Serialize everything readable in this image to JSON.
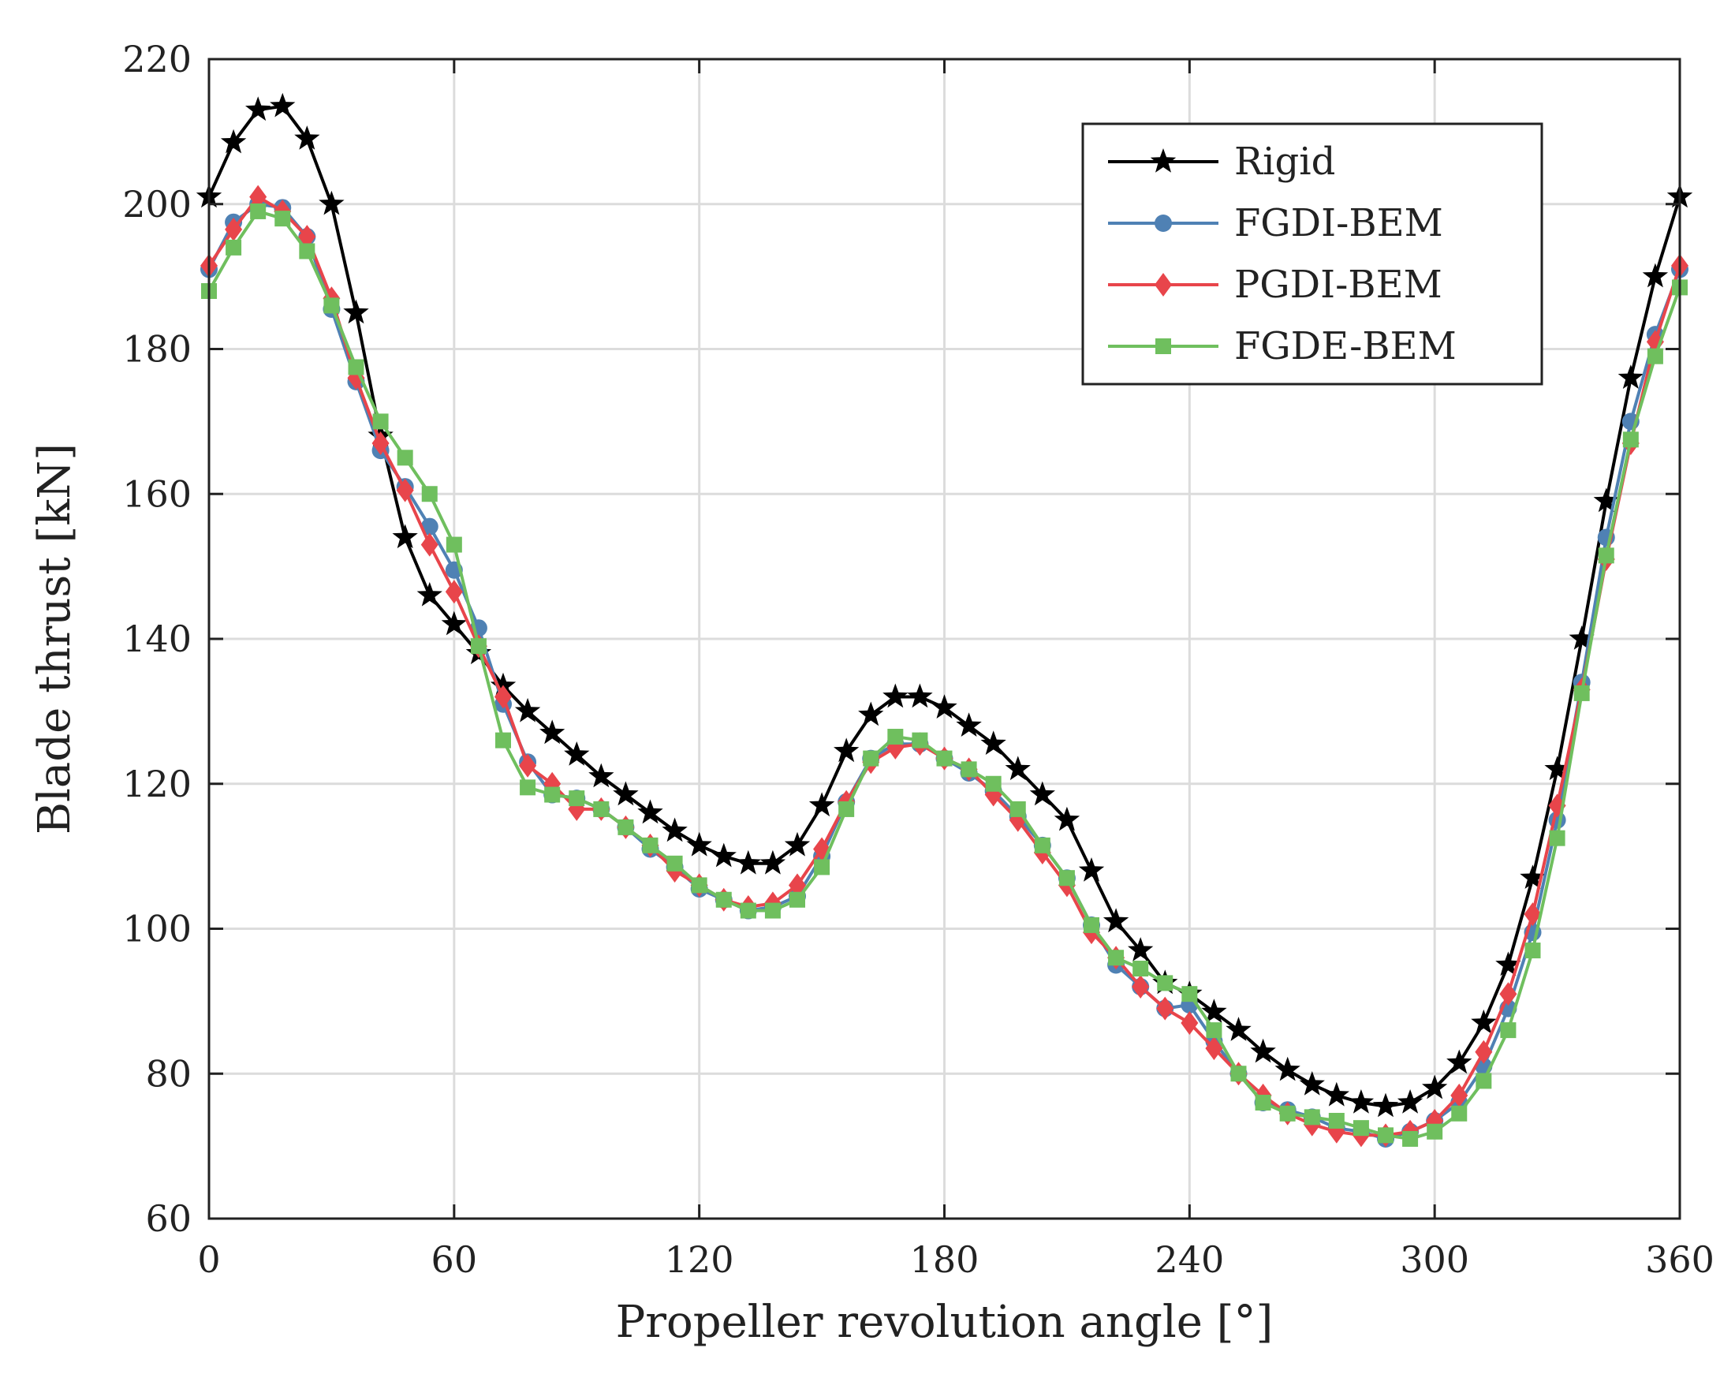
{
  "chart_data": {
    "type": "line",
    "title": "",
    "xlabel": "Propeller revolution angle [°]",
    "ylabel": "Blade thrust [kN]",
    "xlim": [
      0,
      360
    ],
    "ylim": [
      60,
      220
    ],
    "xticks": [
      0,
      60,
      120,
      180,
      240,
      300,
      360
    ],
    "yticks": [
      60,
      80,
      100,
      120,
      140,
      160,
      180,
      200,
      220
    ],
    "grid": true,
    "legend_position": "top-right",
    "x": [
      0,
      6,
      12,
      18,
      24,
      30,
      36,
      42,
      48,
      54,
      60,
      66,
      72,
      78,
      84,
      90,
      96,
      102,
      108,
      114,
      120,
      126,
      132,
      138,
      144,
      150,
      156,
      162,
      168,
      174,
      180,
      186,
      192,
      198,
      204,
      210,
      216,
      222,
      228,
      234,
      240,
      246,
      252,
      258,
      264,
      270,
      276,
      282,
      288,
      294,
      300,
      306,
      312,
      318,
      324,
      330,
      336,
      342,
      348,
      354,
      360
    ],
    "series": [
      {
        "name": "Rigid",
        "color": "#000000",
        "marker": "star",
        "values": [
          201,
          208.5,
          213,
          213.5,
          209,
          200,
          185,
          168,
          154,
          146,
          142,
          138,
          133.5,
          130,
          127,
          124,
          121,
          118.5,
          116,
          113.5,
          111.5,
          110,
          109,
          109,
          111.5,
          117,
          124.5,
          129.5,
          132,
          132,
          130.5,
          128,
          125.5,
          122,
          118.5,
          115,
          108,
          101,
          97,
          92.5,
          91,
          88.5,
          86,
          83,
          80.5,
          78.5,
          77,
          76,
          75.5,
          76,
          78,
          81.5,
          87,
          95,
          107,
          122,
          140,
          159,
          176,
          190,
          201
        ]
      },
      {
        "name": "FGDI-BEM",
        "color": "#4f81b4",
        "marker": "circle",
        "values": [
          191,
          197.5,
          200,
          199.5,
          195.5,
          185.5,
          175.5,
          166,
          161,
          155.5,
          149.5,
          141.5,
          131,
          123,
          118.5,
          118,
          116.5,
          114,
          111,
          108.5,
          105.5,
          104,
          102.5,
          103,
          104.5,
          110,
          117.5,
          123.5,
          125.5,
          125.5,
          123.5,
          121.5,
          119,
          115.5,
          111.5,
          107,
          100.5,
          95,
          92,
          89,
          89.5,
          84.5,
          80,
          76,
          75,
          74,
          72.5,
          72,
          71,
          72,
          73.5,
          76,
          81,
          89,
          99.5,
          115,
          134,
          154,
          170,
          182,
          191
        ]
      },
      {
        "name": "PGDI-BEM",
        "color": "#e8454b",
        "marker": "diamond",
        "values": [
          191.5,
          196.5,
          201,
          199,
          195.5,
          187,
          176,
          167,
          160.5,
          153,
          146.5,
          139,
          132,
          122.5,
          120,
          116.5,
          116.5,
          114,
          111.5,
          108,
          106,
          104,
          103,
          103.5,
          106,
          111,
          117.5,
          123,
          125,
          125.5,
          123.5,
          122,
          118.5,
          115,
          110.5,
          106,
          99.5,
          96,
          92,
          89,
          87,
          83.5,
          80,
          77,
          74.5,
          73,
          72,
          71.5,
          71.5,
          72,
          73.5,
          77,
          83,
          91,
          102,
          117,
          133,
          151,
          167,
          181,
          191.5
        ]
      },
      {
        "name": "FGDE-BEM",
        "color": "#6fbf5e",
        "marker": "square",
        "values": [
          188,
          194,
          199,
          198,
          193.5,
          186,
          177.5,
          170,
          165,
          160,
          153,
          139,
          126,
          119.5,
          118.5,
          118,
          116.5,
          114,
          111.5,
          109,
          106,
          104,
          102.5,
          102.5,
          104,
          108.5,
          116.5,
          123.5,
          126.5,
          126,
          123.5,
          122,
          120,
          116.5,
          111.5,
          107,
          100.5,
          96,
          94.5,
          92.5,
          91,
          86,
          80,
          76,
          74.5,
          74,
          73.5,
          72.5,
          71.5,
          71,
          72,
          74.5,
          79,
          86,
          97,
          112.5,
          132.5,
          151.5,
          167.5,
          179,
          188.5
        ]
      }
    ]
  }
}
